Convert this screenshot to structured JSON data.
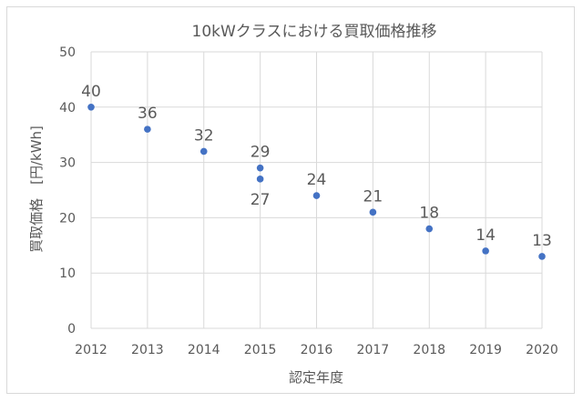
{
  "chart_data": {
    "type": "scatter",
    "title": "10kWクラスにおける買取価格推移",
    "xlabel": "認定年度",
    "ylabel": "買取価格　[円/kWh]",
    "xlim": [
      2012,
      2020
    ],
    "ylim": [
      0,
      50
    ],
    "xticks": [
      "2012",
      "2013",
      "2014",
      "2015",
      "2016",
      "2017",
      "2018",
      "2019",
      "2020"
    ],
    "yticks": [
      "0",
      "10",
      "20",
      "30",
      "40",
      "50"
    ],
    "grid": true,
    "points": [
      {
        "x": 2012,
        "y": 40,
        "label": "40",
        "label_pos": "above"
      },
      {
        "x": 2013,
        "y": 36,
        "label": "36",
        "label_pos": "above"
      },
      {
        "x": 2014,
        "y": 32,
        "label": "32",
        "label_pos": "above"
      },
      {
        "x": 2015,
        "y": 29,
        "label": "29",
        "label_pos": "above"
      },
      {
        "x": 2015,
        "y": 27,
        "label": "27",
        "label_pos": "below"
      },
      {
        "x": 2016,
        "y": 24,
        "label": "24",
        "label_pos": "above"
      },
      {
        "x": 2017,
        "y": 21,
        "label": "21",
        "label_pos": "above"
      },
      {
        "x": 2018,
        "y": 18,
        "label": "18",
        "label_pos": "above"
      },
      {
        "x": 2019,
        "y": 14,
        "label": "14",
        "label_pos": "above"
      },
      {
        "x": 2020,
        "y": 13,
        "label": "13",
        "label_pos": "above"
      }
    ],
    "colors": {
      "marker": "#4472c4",
      "grid": "#d9d9d9",
      "text": "#595959"
    }
  }
}
